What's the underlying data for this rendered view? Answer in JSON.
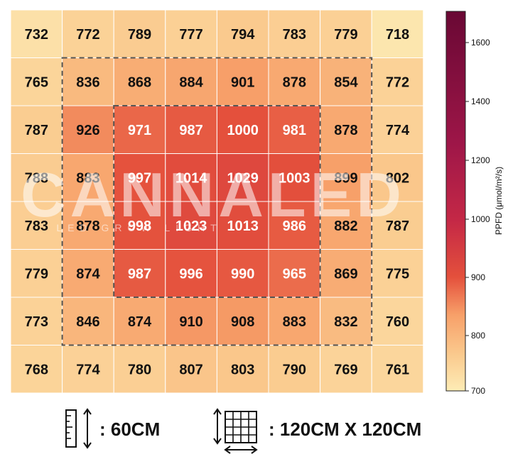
{
  "chart_data": {
    "type": "heatmap",
    "rows": 8,
    "cols": 8,
    "values": [
      [
        732,
        772,
        789,
        777,
        794,
        783,
        779,
        718
      ],
      [
        765,
        836,
        868,
        884,
        901,
        878,
        854,
        772
      ],
      [
        787,
        926,
        971,
        987,
        1000,
        981,
        878,
        774
      ],
      [
        788,
        883,
        997,
        1014,
        1029,
        1003,
        899,
        802
      ],
      [
        783,
        878,
        998,
        1023,
        1013,
        986,
        882,
        787
      ],
      [
        779,
        874,
        987,
        996,
        990,
        965,
        869,
        775
      ],
      [
        773,
        846,
        874,
        910,
        908,
        883,
        832,
        760
      ],
      [
        768,
        774,
        780,
        807,
        803,
        790,
        769,
        761
      ]
    ],
    "colorbar": {
      "label": "PPFD (μmol/m²/s)",
      "min": 700,
      "max": 1700,
      "ticks": [
        700,
        800,
        900,
        1000,
        1200,
        1400,
        1600
      ]
    },
    "highlight_regions": [
      {
        "rows": [
          1,
          6
        ],
        "cols": [
          1,
          6
        ]
      },
      {
        "rows": [
          2,
          5
        ],
        "cols": [
          2,
          5
        ]
      }
    ]
  },
  "watermark": {
    "brand": "CANNALED",
    "tagline": "LED GROW LIGHT"
  },
  "footer": {
    "height_text": ": 60CM",
    "area_text": ": 120CM X 120CM"
  },
  "icons": {
    "height": "ruler-height-icon",
    "area": "grid-area-icon"
  }
}
